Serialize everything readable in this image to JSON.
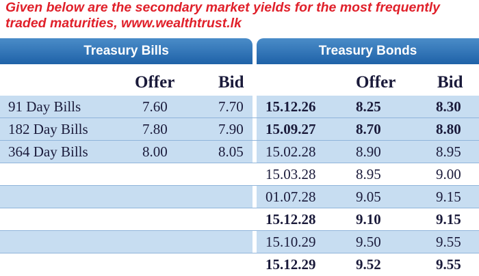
{
  "caption": {
    "line1": "Given below are the secondary market yields for the most frequently",
    "line2": "traded maturities, www.wealthtrust.lk"
  },
  "bills": {
    "title": "Treasury Bills",
    "offer_label": "Offer",
    "bid_label": "Bid",
    "rows": [
      {
        "name": "91 Day Bills",
        "offer": "7.60",
        "bid": "7.70"
      },
      {
        "name": "182 Day Bills",
        "offer": "7.80",
        "bid": "7.90"
      },
      {
        "name": "364 Day Bills",
        "offer": "8.00",
        "bid": "8.05"
      }
    ]
  },
  "bonds": {
    "title": "Treasury Bonds",
    "offer_label": "Offer",
    "bid_label": "Bid",
    "rows": [
      {
        "date": "15.12.26",
        "offer": "8.25",
        "bid": "8.30",
        "bold": true
      },
      {
        "date": "15.09.27",
        "offer": "8.70",
        "bid": "8.80",
        "bold": true
      },
      {
        "date": "15.02.28",
        "offer": "8.90",
        "bid": "8.95",
        "bold": false
      },
      {
        "date": "15.03.28",
        "offer": "8.95",
        "bid": "9.00",
        "bold": false
      },
      {
        "date": "01.07.28",
        "offer": "9.05",
        "bid": "9.15",
        "bold": false
      },
      {
        "date": "15.12.28",
        "offer": "9.10",
        "bid": "9.15",
        "bold": true
      },
      {
        "date": "15.10.29",
        "offer": "9.50",
        "bid": "9.55",
        "bold": false
      },
      {
        "date": "15.12.29",
        "offer": "9.52",
        "bid": "9.55",
        "bold": true
      }
    ]
  },
  "colors": {
    "caption": "#e0202a",
    "header": "#2a6db1",
    "row_shade": "#c7ddf1"
  }
}
